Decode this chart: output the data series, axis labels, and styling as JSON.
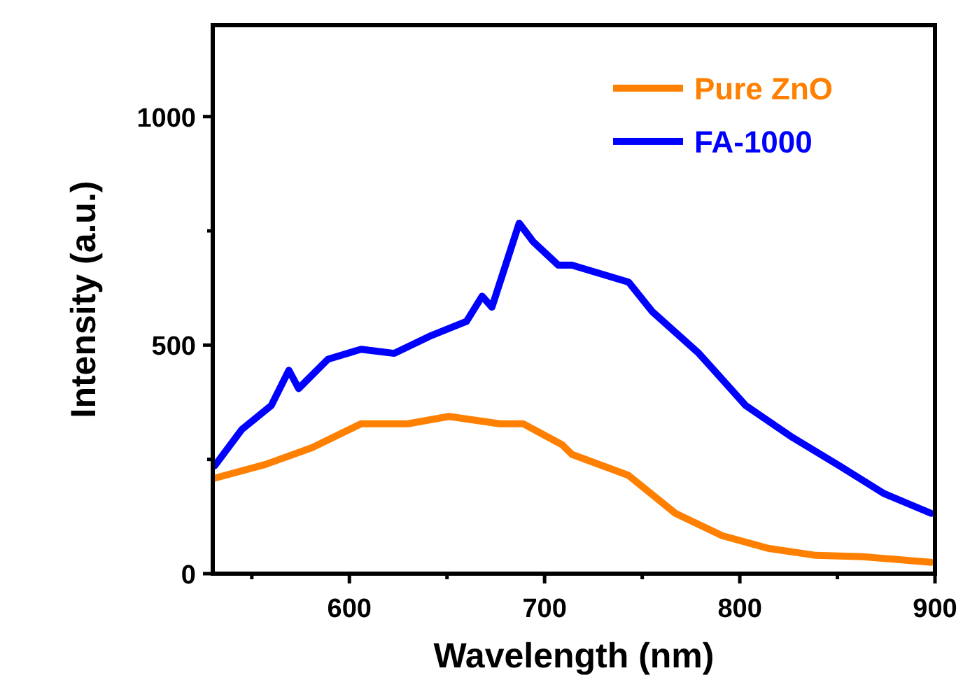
{
  "chart_data": {
    "type": "line",
    "xlabel": "Wavelength (nm)",
    "ylabel": "Intensity (a.u.)",
    "xlim": [
      530,
      900
    ],
    "ylim": [
      0,
      1200
    ],
    "xticks": [
      {
        "value": 550,
        "label": null
      },
      600,
      {
        "value": 650,
        "label": null
      },
      700,
      {
        "value": 750,
        "label": null
      },
      800,
      {
        "value": 850,
        "label": null
      },
      900
    ],
    "yticks": [
      0,
      {
        "value": 250,
        "label": null
      },
      500,
      {
        "value": 750,
        "label": null
      },
      1000
    ],
    "legend": "top right",
    "grid": false,
    "line_style": "solid",
    "series": [
      {
        "name": "Pure ZnO",
        "color": "#ff8000",
        "x": [
          531,
          557,
          581,
          606,
          630,
          651,
          677,
          689,
          709,
          714,
          743,
          767,
          791,
          815,
          839,
          863,
          898
        ],
        "values": [
          209,
          239,
          276,
          328,
          328,
          344,
          328,
          328,
          282,
          261,
          215,
          132,
          83,
          55,
          40,
          37,
          25
        ]
      },
      {
        "name": "FA-1000",
        "color": "#0000ff",
        "x": [
          531,
          545,
          560,
          569,
          574,
          589,
          606,
          623,
          642,
          660,
          668,
          673,
          687,
          694,
          707,
          714,
          743,
          755,
          779,
          803,
          827,
          851,
          874,
          898
        ],
        "values": [
          236,
          316,
          368,
          445,
          405,
          469,
          491,
          482,
          521,
          552,
          607,
          583,
          767,
          727,
          675,
          675,
          638,
          574,
          482,
          368,
          298,
          236,
          175,
          132
        ]
      }
    ]
  }
}
